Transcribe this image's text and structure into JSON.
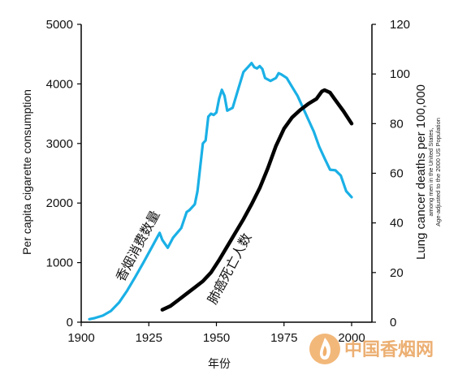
{
  "chart_data": {
    "type": "line",
    "title": "",
    "xlabel": "年份",
    "x_ticks": [
      1900,
      1925,
      1950,
      1975,
      2000
    ],
    "xlim": [
      1900,
      2008
    ],
    "y_left": {
      "label": "Per capita cigarette consumption",
      "ticks": [
        0,
        1000,
        2000,
        3000,
        4000,
        5000
      ],
      "lim": [
        0,
        5000
      ]
    },
    "y_right": {
      "label": "Lung cancer deaths per 100,000",
      "sub_label_1": "among men in the United States,",
      "sub_label_2": "Age-adjusted to the 2000 US Population",
      "ticks": [
        0,
        20,
        40,
        60,
        80,
        100,
        120
      ],
      "lim": [
        0,
        120
      ]
    },
    "series": [
      {
        "name": "香烟消费数量",
        "axis": "left",
        "color": "#1ab0e6",
        "x": [
          1903,
          1905,
          1908,
          1911,
          1914,
          1917,
          1920,
          1923,
          1926,
          1929,
          1930,
          1932,
          1934,
          1937,
          1939,
          1940,
          1942,
          1943,
          1944,
          1945,
          1946,
          1947,
          1948,
          1949,
          1950,
          1951,
          1952,
          1953,
          1954,
          1956,
          1958,
          1960,
          1962,
          1963,
          1964,
          1965,
          1966,
          1967,
          1968,
          1970,
          1972,
          1973,
          1974,
          1976,
          1978,
          1980,
          1982,
          1984,
          1986,
          1988,
          1990,
          1992,
          1994,
          1996,
          1998,
          2000
        ],
        "y": [
          50,
          70,
          110,
          190,
          330,
          530,
          760,
          1000,
          1250,
          1500,
          1380,
          1250,
          1420,
          1580,
          1850,
          1880,
          1980,
          2200,
          2600,
          3000,
          3050,
          3450,
          3500,
          3480,
          3520,
          3750,
          3900,
          3800,
          3550,
          3600,
          3900,
          4200,
          4300,
          4350,
          4280,
          4260,
          4300,
          4250,
          4100,
          4050,
          4100,
          4180,
          4160,
          4100,
          3950,
          3800,
          3600,
          3400,
          3200,
          2950,
          2750,
          2560,
          2550,
          2460,
          2200,
          2100
        ]
      },
      {
        "name": "肺癌死亡人数",
        "axis": "right",
        "color": "#000000",
        "x": [
          1930,
          1933,
          1936,
          1939,
          1942,
          1945,
          1948,
          1951,
          1954,
          1957,
          1960,
          1963,
          1966,
          1969,
          1972,
          1975,
          1978,
          1981,
          1984,
          1987,
          1989,
          1990,
          1992,
          1994,
          1997,
          2000
        ],
        "y": [
          5,
          6.5,
          9,
          11.5,
          14,
          16.5,
          20,
          25,
          30.5,
          36,
          41.5,
          47.5,
          54,
          62,
          71,
          78,
          82.5,
          85.5,
          88,
          90,
          93,
          93.5,
          92.5,
          89.5,
          85,
          80
        ]
      }
    ]
  },
  "labels": {
    "consumption": "香烟消费数量",
    "deaths": "肺癌死亡人数"
  },
  "watermark": {
    "text": "中国香烟网",
    "color": "#e9a25a"
  }
}
